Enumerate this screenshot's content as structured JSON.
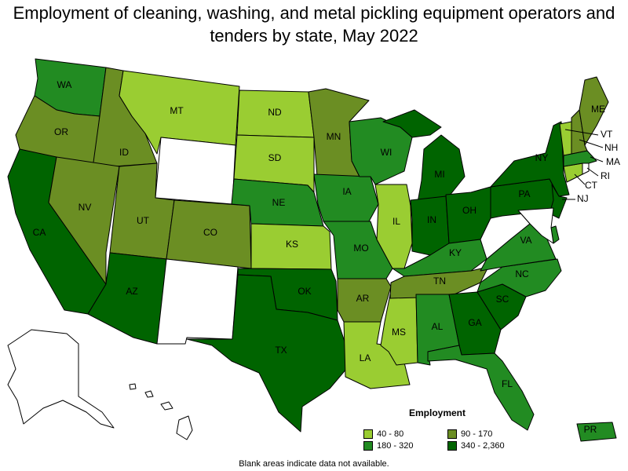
{
  "title": "Employment of cleaning, washing, and metal pickling equipment operators and tenders by state, May 2022",
  "legend": {
    "title": "Employment",
    "items": [
      {
        "label": "40 - 80",
        "color": "#9acd32"
      },
      {
        "label": "90 - 170",
        "color": "#6b8e23"
      },
      {
        "label": "180 - 320",
        "color": "#228b22"
      },
      {
        "label": "340 - 2,360",
        "color": "#006400"
      }
    ]
  },
  "footnote": "Blank areas indicate data not available.",
  "states": {
    "WA": {
      "label": "WA",
      "class": "180 - 320"
    },
    "OR": {
      "label": "OR",
      "class": "90 - 170"
    },
    "CA": {
      "label": "CA",
      "class": "340 - 2,360"
    },
    "ID": {
      "label": "ID",
      "class": "90 - 170"
    },
    "NV": {
      "label": "NV",
      "class": "90 - 170"
    },
    "MT": {
      "label": "MT",
      "class": "40 - 80"
    },
    "WY": {
      "label": "",
      "class": "none"
    },
    "UT": {
      "label": "UT",
      "class": "90 - 170"
    },
    "AZ": {
      "label": "AZ",
      "class": "340 - 2,360"
    },
    "CO": {
      "label": "CO",
      "class": "90 - 170"
    },
    "NM": {
      "label": "",
      "class": "none"
    },
    "ND": {
      "label": "ND",
      "class": "40 - 80"
    },
    "SD": {
      "label": "SD",
      "class": "40 - 80"
    },
    "NE": {
      "label": "NE",
      "class": "180 - 320"
    },
    "KS": {
      "label": "KS",
      "class": "40 - 80"
    },
    "OK": {
      "label": "OK",
      "class": "340 - 2,360"
    },
    "TX": {
      "label": "TX",
      "class": "340 - 2,360"
    },
    "MN": {
      "label": "MN",
      "class": "90 - 170"
    },
    "IA": {
      "label": "IA",
      "class": "180 - 320"
    },
    "MO": {
      "label": "MO",
      "class": "180 - 320"
    },
    "AR": {
      "label": "AR",
      "class": "90 - 170"
    },
    "LA": {
      "label": "LA",
      "class": "40 - 80"
    },
    "WI": {
      "label": "WI",
      "class": "180 - 320"
    },
    "IL": {
      "label": "IL",
      "class": "40 - 80"
    },
    "MS": {
      "label": "MS",
      "class": "40 - 80"
    },
    "MI": {
      "label": "MI",
      "class": "340 - 2,360"
    },
    "IN": {
      "label": "IN",
      "class": "340 - 2,360"
    },
    "OH": {
      "label": "OH",
      "class": "340 - 2,360"
    },
    "KY": {
      "label": "KY",
      "class": "180 - 320"
    },
    "TN": {
      "label": "TN",
      "class": "90 - 170"
    },
    "AL": {
      "label": "AL",
      "class": "180 - 320"
    },
    "GA": {
      "label": "GA",
      "class": "340 - 2,360"
    },
    "FL": {
      "label": "FL",
      "class": "180 - 320"
    },
    "SC": {
      "label": "SC",
      "class": "340 - 2,360"
    },
    "NC": {
      "label": "NC",
      "class": "180 - 320"
    },
    "VA": {
      "label": "VA",
      "class": "180 - 320"
    },
    "WV": {
      "label": "",
      "class": "none"
    },
    "PA": {
      "label": "PA",
      "class": "340 - 2,360"
    },
    "NY": {
      "label": "NY",
      "class": "340 - 2,360"
    },
    "NJ": {
      "label": "NJ",
      "class": "340 - 2,360"
    },
    "DE": {
      "label": "",
      "class": "180 - 320"
    },
    "MD": {
      "label": "",
      "class": "none"
    },
    "CT": {
      "label": "CT",
      "class": "40 - 80"
    },
    "RI": {
      "label": "RI",
      "class": "none"
    },
    "MA": {
      "label": "MA",
      "class": "180 - 320"
    },
    "VT": {
      "label": "VT",
      "class": "40 - 80"
    },
    "NH": {
      "label": "NH",
      "class": "90 - 170"
    },
    "ME": {
      "label": "ME",
      "class": "90 - 170"
    },
    "AK": {
      "label": "",
      "class": "none"
    },
    "HI": {
      "label": "",
      "class": "none"
    },
    "PR": {
      "label": "PR",
      "class": "180 - 320"
    }
  }
}
